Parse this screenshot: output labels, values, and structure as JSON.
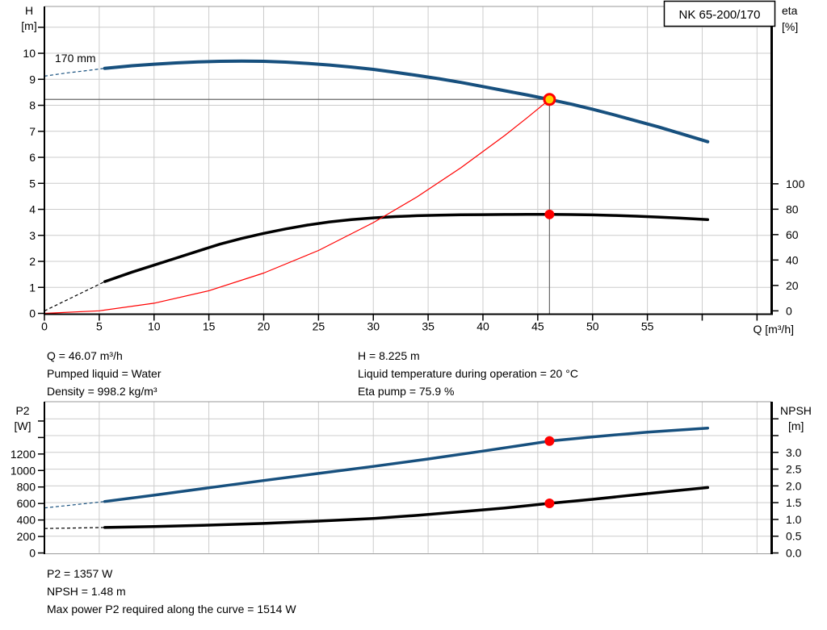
{
  "colors": {
    "grid": "#cccccc",
    "frame_gray": "#999999",
    "axis_black": "#000000",
    "curve_blue": "#17507e",
    "curve_black": "#000000",
    "system_red": "#ff0000",
    "marker_red": "#ff0000",
    "marker_yellow": "#ffd400",
    "crosshair": "#666666"
  },
  "title_box": {
    "label": "NK 65-200/170"
  },
  "annotations": {
    "left": [
      "Q = 46.07 m³/h",
      "Pumped liquid = Water",
      "Density = 998.2 kg/m³"
    ],
    "right": [
      "H = 8.225 m",
      "Liquid temperature during operation = 20 °C",
      "Eta pump = 75.9 %"
    ],
    "bottom": [
      "P2 = 1357 W",
      "NPSH = 1.48 m",
      "Max power P2 required along the curve = 1514 W"
    ]
  },
  "operating_point": {
    "q_m3h": 46.07,
    "h_m": 8.225,
    "eta_pct": 75.9,
    "p2_w": 1357,
    "npsh_m": 1.48,
    "p2_max_w": 1514
  },
  "chart_data": [
    {
      "type": "line",
      "title": "NK 65-200/170",
      "x_axis": {
        "label": "Q [m³/h]",
        "min": 0,
        "max": 66.3,
        "grid_step": 5,
        "ticks": [
          {
            "v": 0,
            "label": "0"
          },
          {
            "v": 5,
            "label": "5"
          },
          {
            "v": 10,
            "label": "10"
          },
          {
            "v": 15,
            "label": "15"
          },
          {
            "v": 20,
            "label": "20"
          },
          {
            "v": 25,
            "label": "25"
          },
          {
            "v": 30,
            "label": "30"
          },
          {
            "v": 35,
            "label": "35"
          },
          {
            "v": 40,
            "label": "40"
          },
          {
            "v": 45,
            "label": "45"
          },
          {
            "v": 50,
            "label": "50"
          },
          {
            "v": 55,
            "label": "55"
          },
          {
            "v": 60
          },
          {
            "v": 65
          }
        ]
      },
      "y_left": {
        "label": "H",
        "unit": "[m]",
        "min": 0,
        "max": 11.8,
        "ticks": [
          {
            "v": 0,
            "label": "0"
          },
          {
            "v": 1,
            "label": "1"
          },
          {
            "v": 2,
            "label": "2"
          },
          {
            "v": 3,
            "label": "3"
          },
          {
            "v": 4,
            "label": "4"
          },
          {
            "v": 5,
            "label": "5"
          },
          {
            "v": 6,
            "label": "6"
          },
          {
            "v": 7,
            "label": "7"
          },
          {
            "v": 8,
            "label": "8"
          },
          {
            "v": 9,
            "label": "9"
          },
          {
            "v": 10,
            "label": "10"
          },
          {
            "v": 11
          }
        ]
      },
      "y_right": {
        "label": "eta",
        "unit": "[%]",
        "min": -2,
        "max": 239.6,
        "ticks": [
          {
            "v": 0,
            "label": "0"
          },
          {
            "v": 20,
            "label": "20"
          },
          {
            "v": 40,
            "label": "40"
          },
          {
            "v": 60,
            "label": "60"
          },
          {
            "v": 80,
            "label": "80"
          },
          {
            "v": 100,
            "label": "100"
          }
        ]
      },
      "grid": {
        "axis": "left",
        "step": 1
      },
      "series": [
        {
          "name": "pump-head-curve",
          "label": "170 mm",
          "axis": "left",
          "color": "#17507e",
          "width": 4,
          "lead": [
            [
              0,
              9.12
            ],
            [
              2,
              9.24
            ],
            [
              4,
              9.34
            ],
            [
              5.5,
              9.42
            ]
          ],
          "points": [
            [
              5.5,
              9.42
            ],
            [
              8,
              9.52
            ],
            [
              10,
              9.58
            ],
            [
              12,
              9.63
            ],
            [
              14,
              9.67
            ],
            [
              16,
              9.69
            ],
            [
              18,
              9.7
            ],
            [
              20,
              9.69
            ],
            [
              22,
              9.66
            ],
            [
              24,
              9.61
            ],
            [
              26,
              9.55
            ],
            [
              28,
              9.47
            ],
            [
              30,
              9.38
            ],
            [
              32,
              9.27
            ],
            [
              34,
              9.15
            ],
            [
              36,
              9.02
            ],
            [
              38,
              8.88
            ],
            [
              40,
              8.72
            ],
            [
              42,
              8.56
            ],
            [
              44,
              8.4
            ],
            [
              46.07,
              8.225
            ],
            [
              48,
              8.05
            ],
            [
              50,
              7.85
            ],
            [
              52,
              7.63
            ],
            [
              54,
              7.4
            ],
            [
              56,
              7.17
            ],
            [
              58,
              6.92
            ],
            [
              60.5,
              6.6
            ]
          ]
        },
        {
          "name": "efficiency-curve",
          "axis": "right",
          "color": "#000000",
          "width": 3.5,
          "lead": [
            [
              0,
              0
            ],
            [
              5.5,
              23
            ]
          ],
          "points": [
            [
              5.5,
              23
            ],
            [
              8,
              30.5
            ],
            [
              10,
              36
            ],
            [
              12,
              41.5
            ],
            [
              14,
              47
            ],
            [
              16,
              52.5
            ],
            [
              18,
              57
            ],
            [
              20,
              61
            ],
            [
              22,
              64.5
            ],
            [
              24,
              67.5
            ],
            [
              26,
              70
            ],
            [
              28,
              71.8
            ],
            [
              30,
              73.2
            ],
            [
              32,
              74.2
            ],
            [
              34,
              74.9
            ],
            [
              36,
              75.3
            ],
            [
              38,
              75.6
            ],
            [
              40,
              75.75
            ],
            [
              42,
              75.85
            ],
            [
              44,
              75.9
            ],
            [
              46.07,
              75.9
            ],
            [
              48,
              75.8
            ],
            [
              50,
              75.5
            ],
            [
              52,
              75.1
            ],
            [
              54,
              74.5
            ],
            [
              56,
              73.8
            ],
            [
              58,
              73
            ],
            [
              60.5,
              71.8
            ]
          ]
        },
        {
          "name": "system-curve",
          "axis": "left",
          "color": "#ff0000",
          "width": 1.2,
          "points": [
            [
              0,
              0
            ],
            [
              5,
              0.1
            ],
            [
              10,
              0.39
            ],
            [
              15,
              0.87
            ],
            [
              20,
              1.55
            ],
            [
              25,
              2.42
            ],
            [
              30,
              3.49
            ],
            [
              34,
              4.48
            ],
            [
              38,
              5.6
            ],
            [
              42,
              6.84
            ],
            [
              44,
              7.51
            ],
            [
              46.07,
              8.225
            ]
          ]
        }
      ],
      "crosshair": {
        "x": 46.07,
        "h": 8.225
      },
      "markers": [
        {
          "name": "duty-point",
          "x": 46.07,
          "y": 8.225,
          "axis": "left",
          "r": 6.5,
          "fill": "#ffd400",
          "stroke": "#ff0000",
          "stroke_width": 3,
          "interactable": "true"
        },
        {
          "name": "eta-point",
          "x": 46.07,
          "y": 75.9,
          "axis": "right",
          "r": 6,
          "fill": "#ff0000",
          "interactable": "false"
        }
      ]
    },
    {
      "type": "line",
      "x_axis": {
        "label": "",
        "min": 0,
        "max": 66.3,
        "grid_step": 5,
        "ticks": []
      },
      "y_left": {
        "label": "P2",
        "unit": "[W]",
        "min": 0,
        "max": 1834,
        "ticks": [
          {
            "v": 0,
            "label": "0"
          },
          {
            "v": 200,
            "label": "200"
          },
          {
            "v": 400,
            "label": "400"
          },
          {
            "v": 600,
            "label": "600"
          },
          {
            "v": 800,
            "label": "800"
          },
          {
            "v": 1000,
            "label": "1000"
          },
          {
            "v": 1200,
            "label": "1200"
          },
          {
            "v": 1400
          },
          {
            "v": 1600
          }
        ]
      },
      "y_right": {
        "label": "NPSH",
        "unit": "[m]",
        "min": 0,
        "max": 4.51,
        "ticks": [
          {
            "v": 0,
            "label": "0.0"
          },
          {
            "v": 0.5,
            "label": "0.5"
          },
          {
            "v": 1,
            "label": "1.0"
          },
          {
            "v": 1.5,
            "label": "1.5"
          },
          {
            "v": 2,
            "label": "2.0"
          },
          {
            "v": 2.5,
            "label": "2.5"
          },
          {
            "v": 3,
            "label": "3.0"
          },
          {
            "v": 3.5
          },
          {
            "v": 4
          }
        ]
      },
      "grid": {
        "axis": "right",
        "step": 0.5
      },
      "series": [
        {
          "name": "p2-power-curve",
          "axis": "left",
          "color": "#17507e",
          "width": 3.5,
          "lead": [
            [
              0,
              546
            ],
            [
              5.5,
              624
            ]
          ],
          "points": [
            [
              5.5,
              624
            ],
            [
              10,
              700
            ],
            [
              15,
              790
            ],
            [
              20,
              878
            ],
            [
              25,
              964
            ],
            [
              30,
              1050
            ],
            [
              35,
              1140
            ],
            [
              40,
              1235
            ],
            [
              43,
              1295
            ],
            [
              46.07,
              1357
            ],
            [
              50,
              1408
            ],
            [
              55,
              1465
            ],
            [
              58,
              1492
            ],
            [
              60.5,
              1514
            ]
          ]
        },
        {
          "name": "npsh-curve",
          "axis": "right",
          "color": "#000000",
          "width": 3.5,
          "lead": [
            [
              0,
              0.73
            ],
            [
              5.5,
              0.76
            ]
          ],
          "points": [
            [
              5.5,
              0.76
            ],
            [
              10,
              0.79
            ],
            [
              15,
              0.83
            ],
            [
              20,
              0.88
            ],
            [
              25,
              0.95
            ],
            [
              30,
              1.03
            ],
            [
              34,
              1.12
            ],
            [
              38,
              1.23
            ],
            [
              42,
              1.34
            ],
            [
              46.07,
              1.48
            ],
            [
              50,
              1.6
            ],
            [
              55,
              1.77
            ],
            [
              58,
              1.87
            ],
            [
              60.5,
              1.95
            ]
          ]
        }
      ],
      "markers": [
        {
          "name": "p2-point",
          "x": 46.07,
          "y": 1357,
          "axis": "left",
          "r": 6,
          "fill": "#ff0000",
          "interactable": "false"
        },
        {
          "name": "npsh-point",
          "x": 46.07,
          "y": 1.48,
          "axis": "right",
          "r": 6,
          "fill": "#ff0000",
          "interactable": "false"
        }
      ]
    }
  ]
}
